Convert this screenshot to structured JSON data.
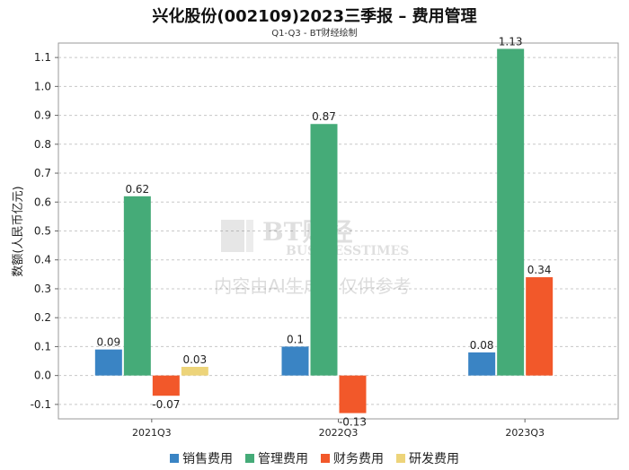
{
  "chart_data": {
    "type": "bar",
    "title": "兴化股份(002109)2023三季报 – 费用管理",
    "subtitle": "Q1-Q3 - BT财经绘制",
    "ylabel": "数额(人民币亿元)",
    "xlabel": "",
    "categories": [
      "2021Q3",
      "2022Q3",
      "2023Q3"
    ],
    "ylim": [
      -0.15,
      1.15
    ],
    "yticks": [
      -0.1,
      0,
      0.1,
      0.2,
      0.3,
      0.4,
      0.5,
      0.6,
      0.7,
      0.8,
      0.9,
      1.0,
      1.1
    ],
    "ytick_labels": [
      "-0.1",
      "0.0",
      "0.1",
      "0.2",
      "0.3",
      "0.4",
      "0.5",
      "0.6",
      "0.7",
      "0.8",
      "0.9",
      "1.0",
      "1.1"
    ],
    "grid": true,
    "legend_position": "bottom",
    "series": [
      {
        "name": "销售费用",
        "color": "#3a84c4",
        "values": [
          0.09,
          0.1,
          0.08
        ],
        "labels": [
          "0.09",
          "0.1",
          "0.08"
        ]
      },
      {
        "name": "管理费用",
        "color": "#45ab78",
        "values": [
          0.62,
          0.87,
          1.13
        ],
        "labels": [
          "0.62",
          "0.87",
          "1.13"
        ]
      },
      {
        "name": "财务费用",
        "color": "#f2582a",
        "values": [
          -0.07,
          -0.13,
          0.34
        ],
        "labels": [
          "-0.07",
          "-0.13",
          "0.34"
        ]
      },
      {
        "name": "研发费用",
        "color": "#edd47a",
        "values": [
          0.03,
          null,
          null
        ],
        "labels": [
          "0.03",
          "",
          ""
        ]
      }
    ]
  },
  "watermark": {
    "logo_text": "BT财经",
    "logo_subtext": "BUSINESSTIMES",
    "notice": "内容由AI生成，仅供参考"
  }
}
